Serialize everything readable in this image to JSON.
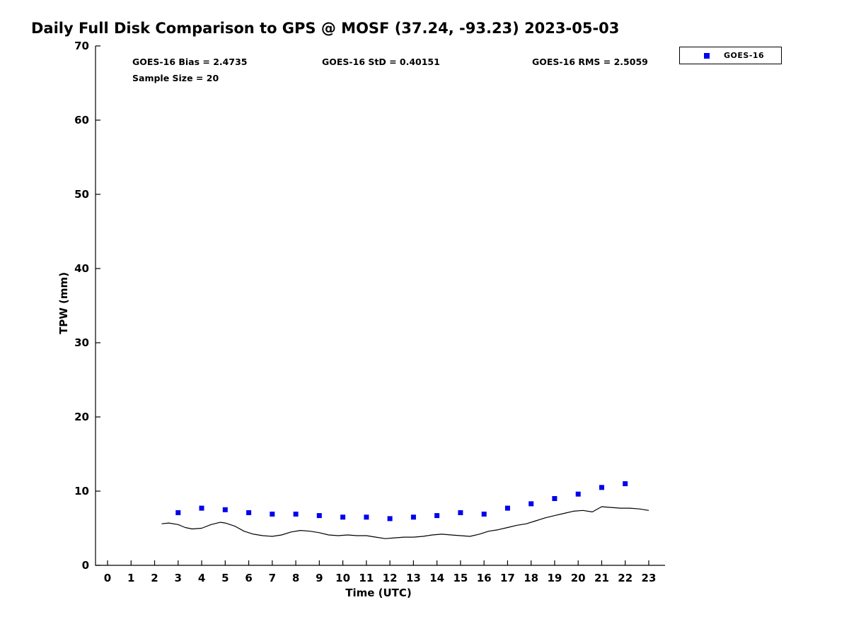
{
  "chart_data": {
    "type": "line+scatter",
    "title": "Daily Full Disk Comparison to GPS @ MOSF (37.24, -93.23) 2023-05-03",
    "xlabel": "Time (UTC)",
    "ylabel": "TPW (mm)",
    "xlim": [
      -0.5,
      23.7
    ],
    "ylim": [
      0,
      70
    ],
    "xticks": [
      "0",
      "1",
      "2",
      "3",
      "4",
      "5",
      "6",
      "7",
      "8",
      "9",
      "10",
      "11",
      "12",
      "13",
      "14",
      "15",
      "16",
      "17",
      "18",
      "19",
      "20",
      "21",
      "22",
      "23"
    ],
    "yticks": [
      "0",
      "10",
      "20",
      "30",
      "40",
      "50",
      "60",
      "70"
    ],
    "grid": false,
    "annotations": {
      "bias": "GOES-16 Bias = 2.4735",
      "std": "GOES-16 StD = 0.40151",
      "rms": "GOES-16 RMS = 2.5059",
      "sample": "Sample Size = 20"
    },
    "legend": {
      "position": "top-right",
      "entries": [
        {
          "label": "GOES-16",
          "marker": "square",
          "color": "#0000ee"
        }
      ]
    },
    "series": [
      {
        "name": "GOES-16",
        "type": "scatter",
        "marker": "square",
        "color": "#0000ee",
        "x": [
          3,
          4,
          5,
          6,
          7,
          8,
          9,
          10,
          11,
          12,
          13,
          14,
          15,
          16,
          17,
          18,
          19,
          20,
          21,
          22
        ],
        "y": [
          7.1,
          7.7,
          7.5,
          7.1,
          6.9,
          6.9,
          6.7,
          6.5,
          6.5,
          6.3,
          6.5,
          6.7,
          7.1,
          6.9,
          7.7,
          8.3,
          9.0,
          9.6,
          10.5,
          11.0
        ]
      },
      {
        "name": "GPS",
        "type": "line",
        "color": "#000000",
        "points": [
          [
            2.3,
            5.6
          ],
          [
            2.6,
            5.7
          ],
          [
            3.0,
            5.5
          ],
          [
            3.3,
            5.1
          ],
          [
            3.6,
            4.9
          ],
          [
            4.0,
            5.0
          ],
          [
            4.4,
            5.5
          ],
          [
            4.8,
            5.8
          ],
          [
            5.0,
            5.7
          ],
          [
            5.4,
            5.3
          ],
          [
            5.8,
            4.6
          ],
          [
            6.2,
            4.2
          ],
          [
            6.6,
            4.0
          ],
          [
            7.0,
            3.9
          ],
          [
            7.4,
            4.1
          ],
          [
            7.8,
            4.5
          ],
          [
            8.2,
            4.7
          ],
          [
            8.6,
            4.6
          ],
          [
            9.0,
            4.4
          ],
          [
            9.4,
            4.1
          ],
          [
            9.8,
            4.0
          ],
          [
            10.2,
            4.1
          ],
          [
            10.6,
            4.0
          ],
          [
            11.0,
            4.0
          ],
          [
            11.4,
            3.8
          ],
          [
            11.8,
            3.6
          ],
          [
            12.2,
            3.7
          ],
          [
            12.6,
            3.8
          ],
          [
            13.0,
            3.8
          ],
          [
            13.4,
            3.9
          ],
          [
            13.8,
            4.1
          ],
          [
            14.2,
            4.2
          ],
          [
            14.6,
            4.1
          ],
          [
            15.0,
            4.0
          ],
          [
            15.4,
            3.9
          ],
          [
            15.8,
            4.2
          ],
          [
            16.2,
            4.6
          ],
          [
            16.6,
            4.8
          ],
          [
            17.0,
            5.1
          ],
          [
            17.4,
            5.4
          ],
          [
            17.8,
            5.6
          ],
          [
            18.2,
            6.0
          ],
          [
            18.6,
            6.4
          ],
          [
            19.0,
            6.7
          ],
          [
            19.4,
            7.0
          ],
          [
            19.8,
            7.3
          ],
          [
            20.2,
            7.4
          ],
          [
            20.6,
            7.2
          ],
          [
            21.0,
            7.9
          ],
          [
            21.4,
            7.8
          ],
          [
            21.8,
            7.7
          ],
          [
            22.2,
            7.7
          ],
          [
            22.6,
            7.6
          ],
          [
            23.0,
            7.4
          ]
        ]
      }
    ]
  }
}
